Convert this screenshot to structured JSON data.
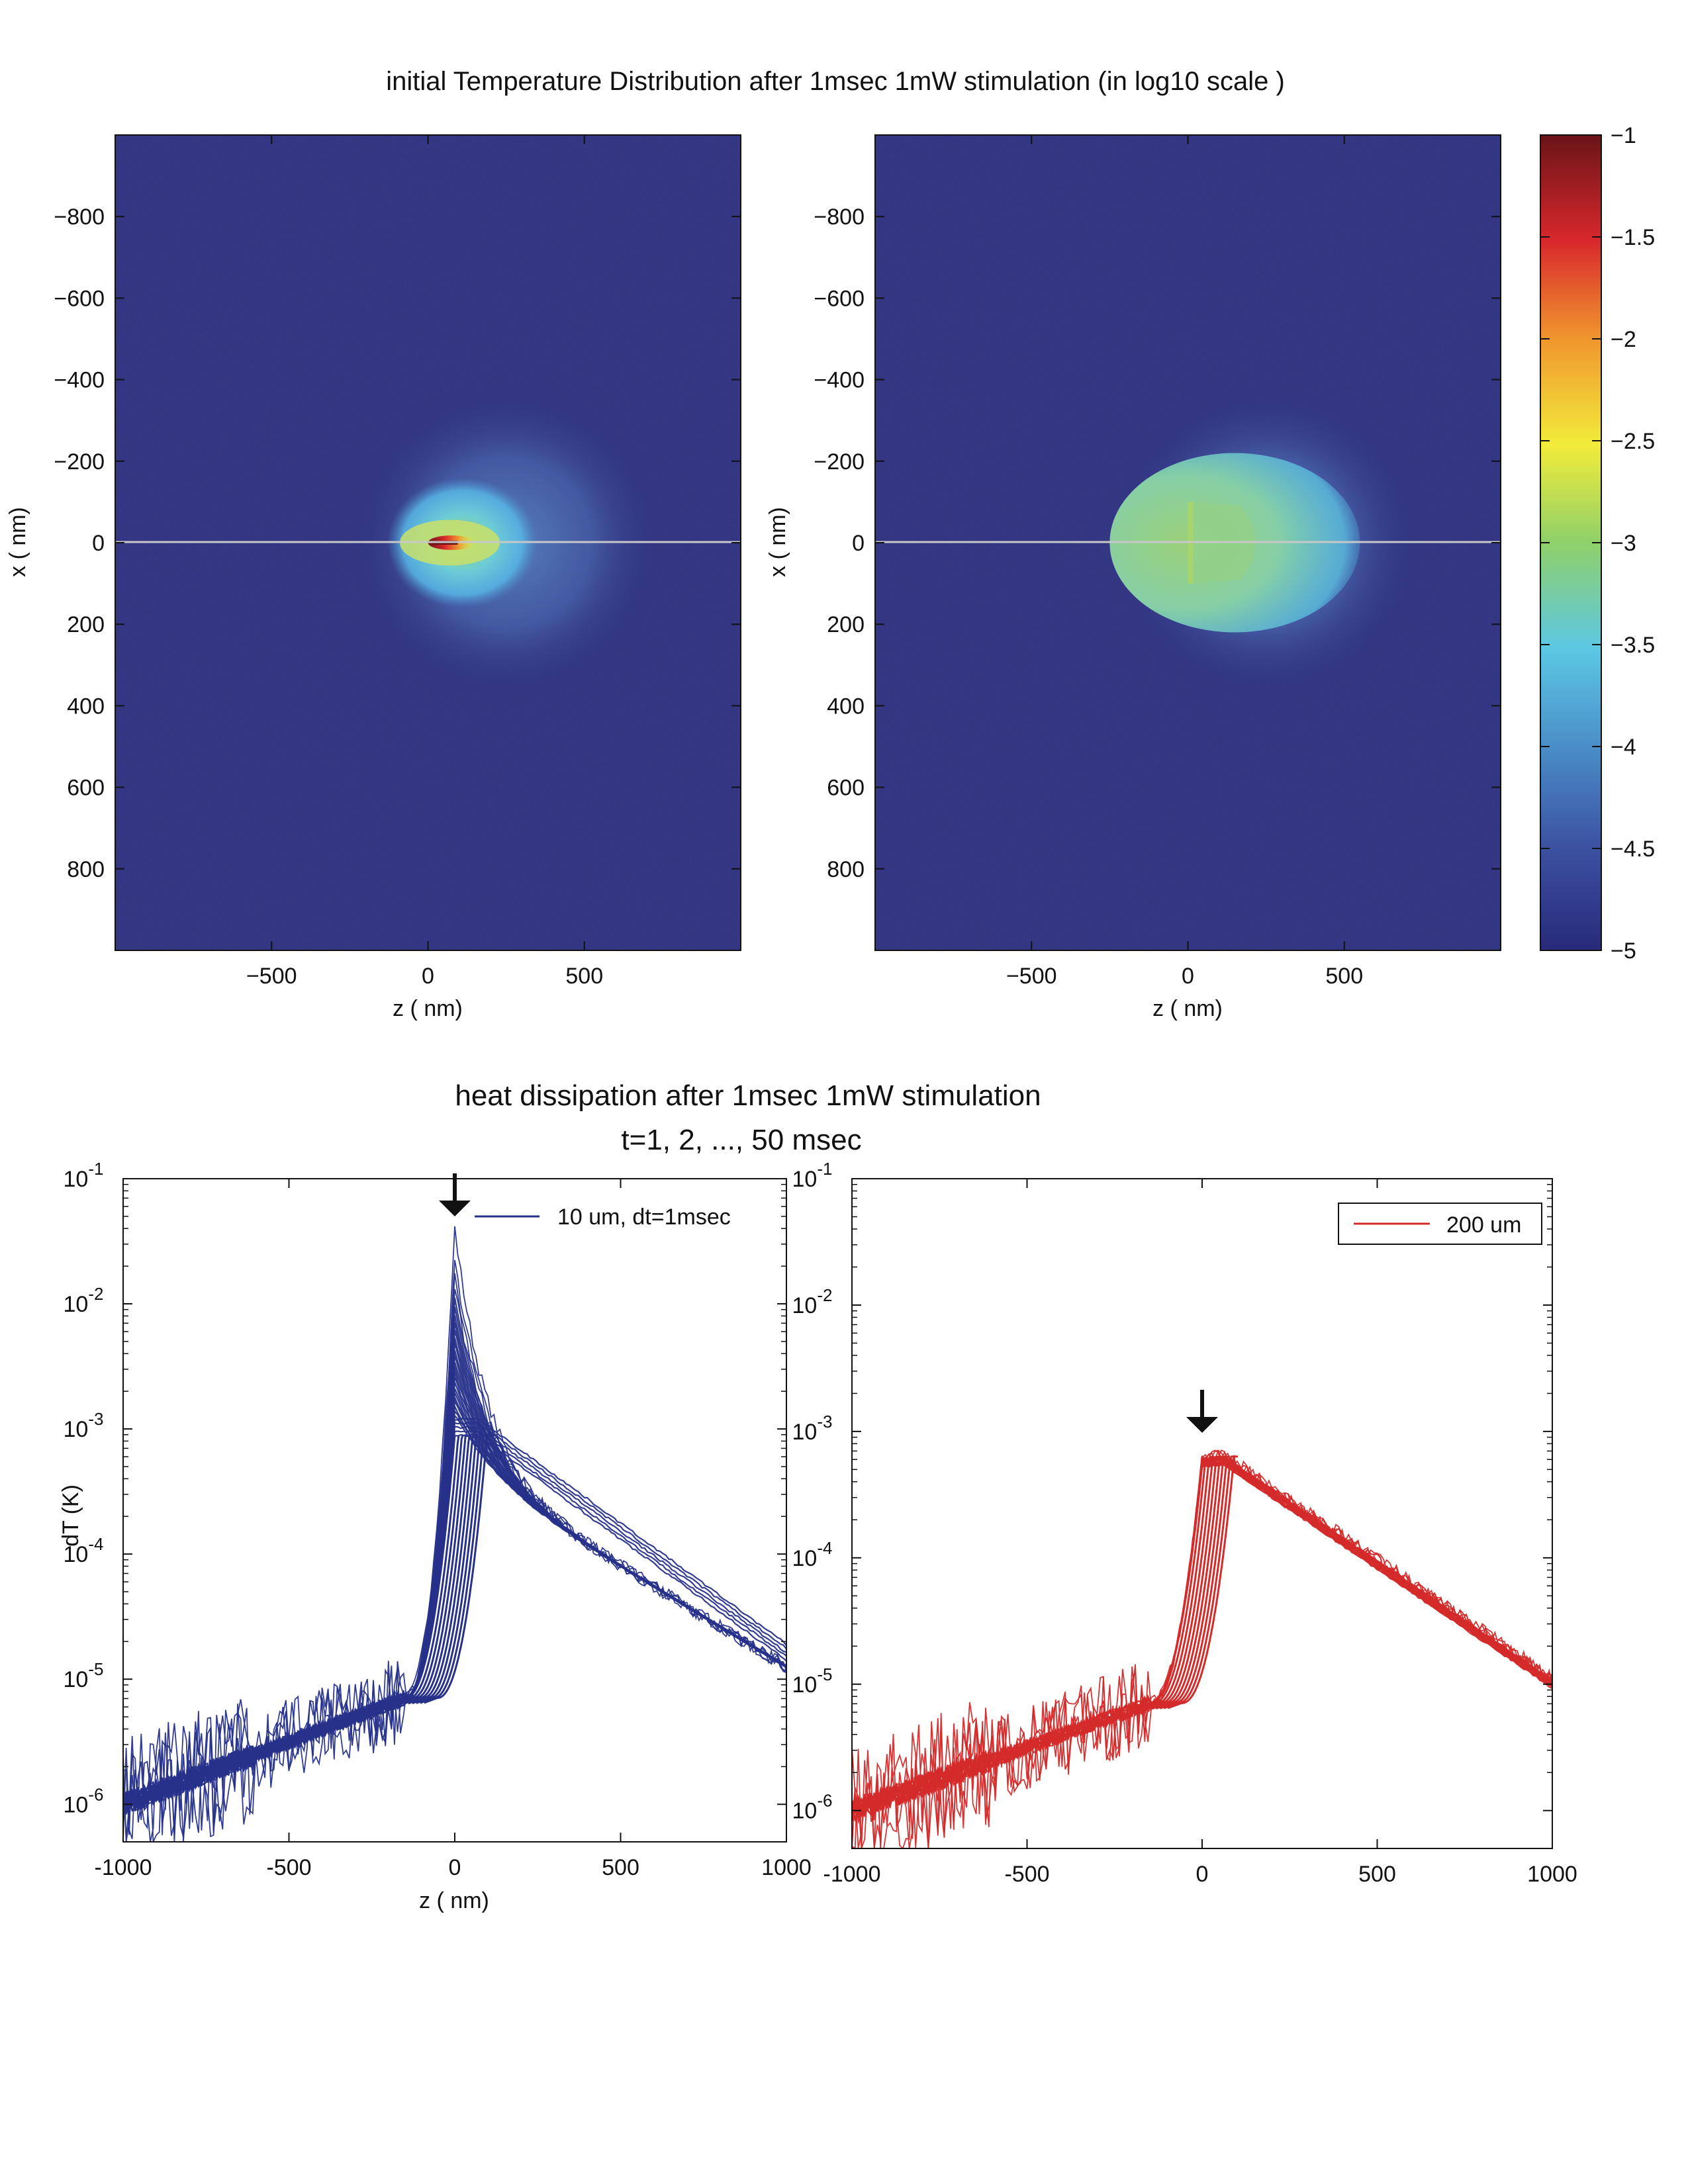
{
  "figure": {
    "top_title": "initial Temperature Distribution after 1msec 1mW stimulation (in log10 scale )",
    "bottom_title_line1": "heat dissipation after 1msec 1mW stimulation",
    "bottom_title_line2": "t=1, 2, ..., 50 msec"
  },
  "colors": {
    "background_deep": "#2b2e7c",
    "blue_series": "#27318a",
    "red_series": "#d42a2a",
    "axis": "#111111",
    "centerline": "#c8c8c8"
  },
  "chart_data": [
    {
      "type": "heatmap",
      "xlabel": "z ( nm)",
      "ylabel": "x ( nm)",
      "xlim": [
        -1000,
        1000
      ],
      "ylim": [
        1000,
        -1000
      ],
      "xticks": [
        "−500",
        "0",
        "500"
      ],
      "xtick_values": [
        -500,
        0,
        500
      ],
      "yticks": [
        "−800",
        "−600",
        "−400",
        "−200",
        "0",
        "200",
        "400",
        "600",
        "800"
      ],
      "ytick_values": [
        -800,
        -600,
        -400,
        -200,
        0,
        200,
        400,
        600,
        800
      ],
      "colorscale": "log10",
      "value_range": [
        -5,
        -1
      ],
      "source": "point",
      "features": {
        "peak_log10": -1.2,
        "hotspot_z_extent": [
          0,
          150
        ],
        "halo_center_z": 250,
        "halo_radius_z": 500,
        "halo_radius_x": 380
      }
    },
    {
      "type": "heatmap",
      "xlabel": "z ( nm)",
      "ylabel": "x ( nm)",
      "xlim": [
        -1000,
        1000
      ],
      "ylim": [
        1000,
        -1000
      ],
      "xticks": [
        "−500",
        "0",
        "500"
      ],
      "xtick_values": [
        -500,
        0,
        500
      ],
      "yticks": [
        "−800",
        "−600",
        "−400",
        "−200",
        "0",
        "200",
        "400",
        "600",
        "800"
      ],
      "ytick_values": [
        -800,
        -600,
        -400,
        -200,
        0,
        200,
        400,
        600,
        800
      ],
      "colorscale": "log10",
      "value_range": [
        -5,
        -1
      ],
      "source": "disk",
      "features": {
        "peak_log10": -3.0,
        "disk_x_extent": [
          -100,
          100
        ],
        "disk_z_start": 0,
        "halo_center_z": 250,
        "halo_radius_z": 500,
        "halo_radius_x": 380
      }
    },
    {
      "type": "colorbar",
      "ticks": [
        "−1",
        "−1.5",
        "−2",
        "−2.5",
        "−3",
        "−3.5",
        "−4",
        "−4.5",
        "−5"
      ],
      "tick_values": [
        -1,
        -1.5,
        -2,
        -2.5,
        -3,
        -3.5,
        -4,
        -4.5,
        -5
      ],
      "range": [
        -5,
        -1
      ]
    },
    {
      "type": "line",
      "xlabel": "z ( nm)",
      "ylabel": "dT (K)",
      "xlim": [
        -1000,
        1000
      ],
      "ylim_log10": [
        -6.3,
        -1
      ],
      "yscale": "log",
      "xticks": [
        "-1000",
        "-500",
        "0",
        "500",
        "1000"
      ],
      "xtick_values": [
        -1000,
        -500,
        0,
        500,
        1000
      ],
      "ytick_exponents": [
        "-1",
        "-2",
        "-3",
        "-4",
        "-5",
        "-6"
      ],
      "ytick_values": [
        -1,
        -2,
        -3,
        -4,
        -5,
        -6
      ],
      "legend": {
        "label": "10  um, dt=1msec",
        "placement": "top-right"
      },
      "series_count": 50,
      "time_range_msec": [
        1,
        50
      ],
      "peak_first_log10": -1.4,
      "peak_last_log10": -3.05,
      "marker_arrow_z": 0,
      "sample_profile_log10": [
        {
          "z": -1000,
          "y": -5.95
        },
        {
          "z": -500,
          "y": -5.75
        },
        {
          "z": -200,
          "y": -5.2
        },
        {
          "z": -100,
          "y": -4.6
        },
        {
          "z": 0,
          "y_first": -1.4,
          "y_last": -3.3
        },
        {
          "z": 60,
          "y_first": -1.9,
          "y_last": -3.05
        },
        {
          "z": 500,
          "y": -4.1
        },
        {
          "z": 1000,
          "y": -4.85
        }
      ]
    },
    {
      "type": "line",
      "xlabel": "",
      "ylabel": "",
      "xlim": [
        -1000,
        1000
      ],
      "ylim_log10": [
        -6.3,
        -1
      ],
      "yscale": "log",
      "xticks": [
        "-1000",
        "-500",
        "0",
        "500",
        "1000"
      ],
      "xtick_values": [
        -1000,
        -500,
        0,
        500,
        1000
      ],
      "ytick_exponents": [
        "-1",
        "-2",
        "-3",
        "-4",
        "-5",
        "-6"
      ],
      "ytick_values": [
        -1,
        -2,
        -3,
        -4,
        -5,
        -6
      ],
      "legend": {
        "label": "200  um",
        "placement": "top-right"
      },
      "series_count": 50,
      "time_range_msec": [
        1,
        50
      ],
      "peak_log10": -3.2,
      "marker_arrow_z": 0,
      "sample_profile_log10": [
        {
          "z": -1000,
          "y": -5.95
        },
        {
          "z": -500,
          "y": -5.7
        },
        {
          "z": -200,
          "y": -5.2
        },
        {
          "z": -100,
          "y": -4.6
        },
        {
          "z": 0,
          "y": -3.4
        },
        {
          "z": 60,
          "y": -3.2
        },
        {
          "z": 500,
          "y": -4.1
        },
        {
          "z": 1000,
          "y": -4.95
        }
      ]
    }
  ]
}
